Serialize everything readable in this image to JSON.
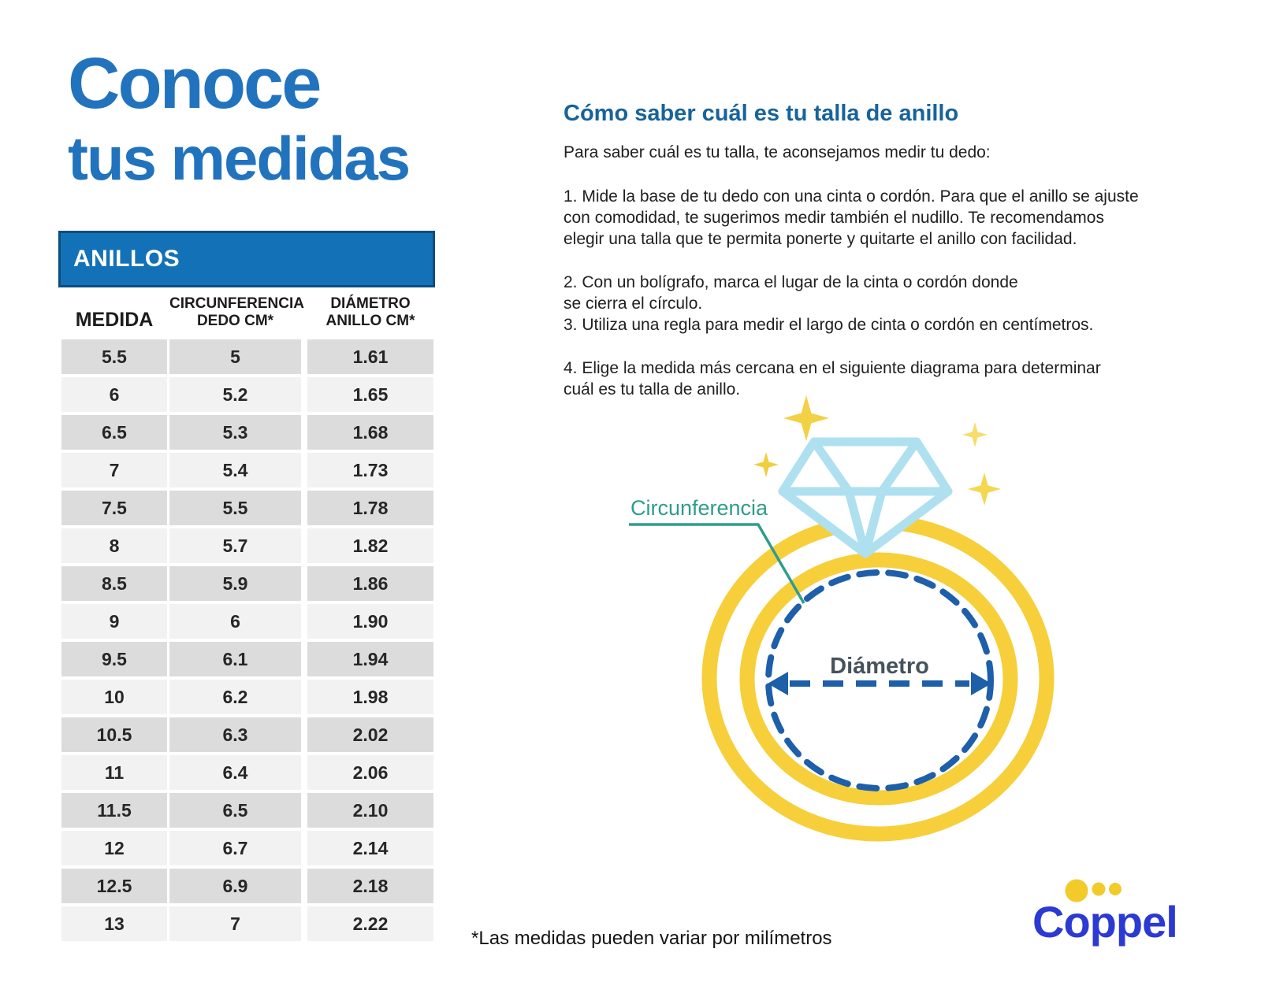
{
  "title": {
    "line1": "Conoce",
    "line2": "tus medidas",
    "color": "#2273bd"
  },
  "size_table": {
    "header": "ANILLOS",
    "header_bg": "#1371b7",
    "header_border": "#0c4d7e",
    "columns": [
      "MEDIDA",
      "CIRCUNFERENCIA\nDEDO CM*",
      "DIÁMETRO\nANILLO CM*"
    ],
    "rows": [
      [
        "5.5",
        "5",
        "1.61"
      ],
      [
        "6",
        "5.2",
        "1.65"
      ],
      [
        "6.5",
        "5.3",
        "1.68"
      ],
      [
        "7",
        "5.4",
        "1.73"
      ],
      [
        "7.5",
        "5.5",
        "1.78"
      ],
      [
        "8",
        "5.7",
        "1.82"
      ],
      [
        "8.5",
        "5.9",
        "1.86"
      ],
      [
        "9",
        "6",
        "1.90"
      ],
      [
        "9.5",
        "6.1",
        "1.94"
      ],
      [
        "10",
        "6.2",
        "1.98"
      ],
      [
        "10.5",
        "6.3",
        "2.02"
      ],
      [
        "11",
        "6.4",
        "2.06"
      ],
      [
        "11.5",
        "6.5",
        "2.10"
      ],
      [
        "12",
        "6.7",
        "2.14"
      ],
      [
        "12.5",
        "6.9",
        "2.18"
      ],
      [
        "13",
        "7",
        "2.22"
      ]
    ],
    "row_colors": {
      "dark": "#dcdcdc",
      "light": "#f3f2f2"
    }
  },
  "guide": {
    "heading": "Cómo saber cuál es tu talla de anillo",
    "intro": "Para saber cuál es tu talla, te aconsejamos medir tu dedo:",
    "steps": [
      "1. Mide la base de tu dedo con una cinta o cordón. Para que el anillo se ajuste\ncon comodidad, te sugerimos medir también el nudillo. Te recomendamos\nelegir una talla que te permita ponerte y quitarte el anillo con facilidad.",
      "2. Con un bolígrafo, marca el lugar de la cinta o cordón donde\nse cierra el círculo.",
      "3. Utiliza una regla para medir el largo de cinta o cordón en centímetros.",
      "4. Elige la medida más cercana en el siguiente diagrama para determinar\ncuál es tu talla de anillo."
    ]
  },
  "diagram": {
    "circumference_label": "Circunferencia",
    "diameter_label": "Diámetro",
    "colors": {
      "ring_yellow": "#f6cf3b",
      "diamond_blue": "#aee0f0",
      "dash_navy": "#1e5fa9",
      "teal": "#2f9c8d",
      "diameter_text": "#44535c",
      "sparkle_yellow": "#f3d145"
    }
  },
  "footnote": "*Las medidas pueden variar por milímetros",
  "logo": {
    "text": "Coppel",
    "text_color": "#2b3ad2",
    "dot_color": "#f2ca2a"
  }
}
